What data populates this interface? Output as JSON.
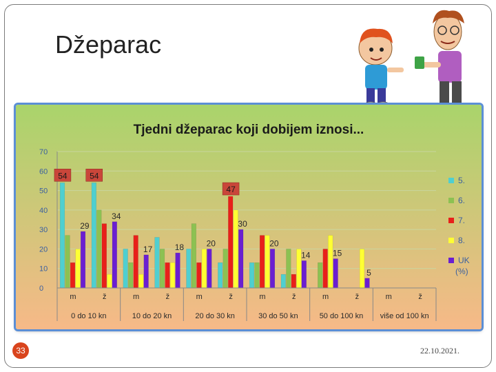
{
  "slide": {
    "title": "Džeparac",
    "number": "33",
    "date": "22.10.2021."
  },
  "colors": {
    "bg_top": "#a9d46b",
    "bg_bottom": "#f7b988",
    "series": [
      "#4fcfd0",
      "#8cc152",
      "#e8201a",
      "#ffff33",
      "#6a1fd1"
    ]
  },
  "icons": [
    "boy-clipart",
    "man-clipart"
  ],
  "chart_data": {
    "type": "bar",
    "title": "Tjedni džeparac koji dobijem iznosi...",
    "ylim": [
      0,
      70
    ],
    "yticks": [
      "0",
      "10",
      "20",
      "30",
      "40",
      "50",
      "60",
      "70"
    ],
    "groups": [
      "0 do 10 kn",
      "10 do 20 kn",
      "20 do 30 kn",
      "30 do 50 kn",
      "50 do 100 kn",
      "više od 100 kn"
    ],
    "sub_categories": [
      "m",
      "ž"
    ],
    "categories": [
      "m",
      "ž",
      "m",
      "ž",
      "m",
      "ž",
      "m",
      "ž",
      "m",
      "ž",
      "m",
      "ž"
    ],
    "legend_unit": "(%)",
    "legend_position": "right",
    "grid": true,
    "series": [
      {
        "name": "5.",
        "values": [
          54,
          54,
          20,
          26,
          20,
          13,
          13,
          7,
          0,
          0,
          0,
          0
        ]
      },
      {
        "name": "6.",
        "values": [
          27,
          40,
          13,
          20,
          33,
          20,
          13,
          20,
          13,
          0,
          0,
          0
        ]
      },
      {
        "name": "7.",
        "values": [
          13,
          33,
          27,
          13,
          13,
          47,
          27,
          7,
          20,
          0,
          0,
          0
        ]
      },
      {
        "name": "8.",
        "values": [
          20,
          7,
          7,
          13,
          20,
          40,
          27,
          20,
          27,
          20,
          0,
          0
        ]
      },
      {
        "name": "UK",
        "values": [
          29,
          34,
          17,
          18,
          20,
          30,
          20,
          14,
          15,
          5,
          0,
          0
        ]
      }
    ],
    "data_labels": [
      {
        "text": "54",
        "series": 0,
        "index": 0,
        "boxed": true
      },
      {
        "text": "54",
        "series": 0,
        "index": 1,
        "boxed": true
      },
      {
        "text": "47",
        "series": 2,
        "index": 5,
        "boxed": true
      },
      {
        "text": "29",
        "series": 4,
        "index": 0,
        "boxed": false
      },
      {
        "text": "34",
        "series": 4,
        "index": 1,
        "boxed": false
      },
      {
        "text": "17",
        "series": 4,
        "index": 2,
        "boxed": false
      },
      {
        "text": "18",
        "series": 4,
        "index": 3,
        "boxed": false
      },
      {
        "text": "20",
        "series": 4,
        "index": 4,
        "boxed": false
      },
      {
        "text": "30",
        "series": 4,
        "index": 5,
        "boxed": false
      },
      {
        "text": "20",
        "series": 4,
        "index": 6,
        "boxed": false
      },
      {
        "text": "14",
        "series": 4,
        "index": 7,
        "boxed": false
      },
      {
        "text": "15",
        "series": 4,
        "index": 8,
        "boxed": false
      },
      {
        "text": "5",
        "series": 4,
        "index": 9,
        "boxed": false
      }
    ]
  }
}
